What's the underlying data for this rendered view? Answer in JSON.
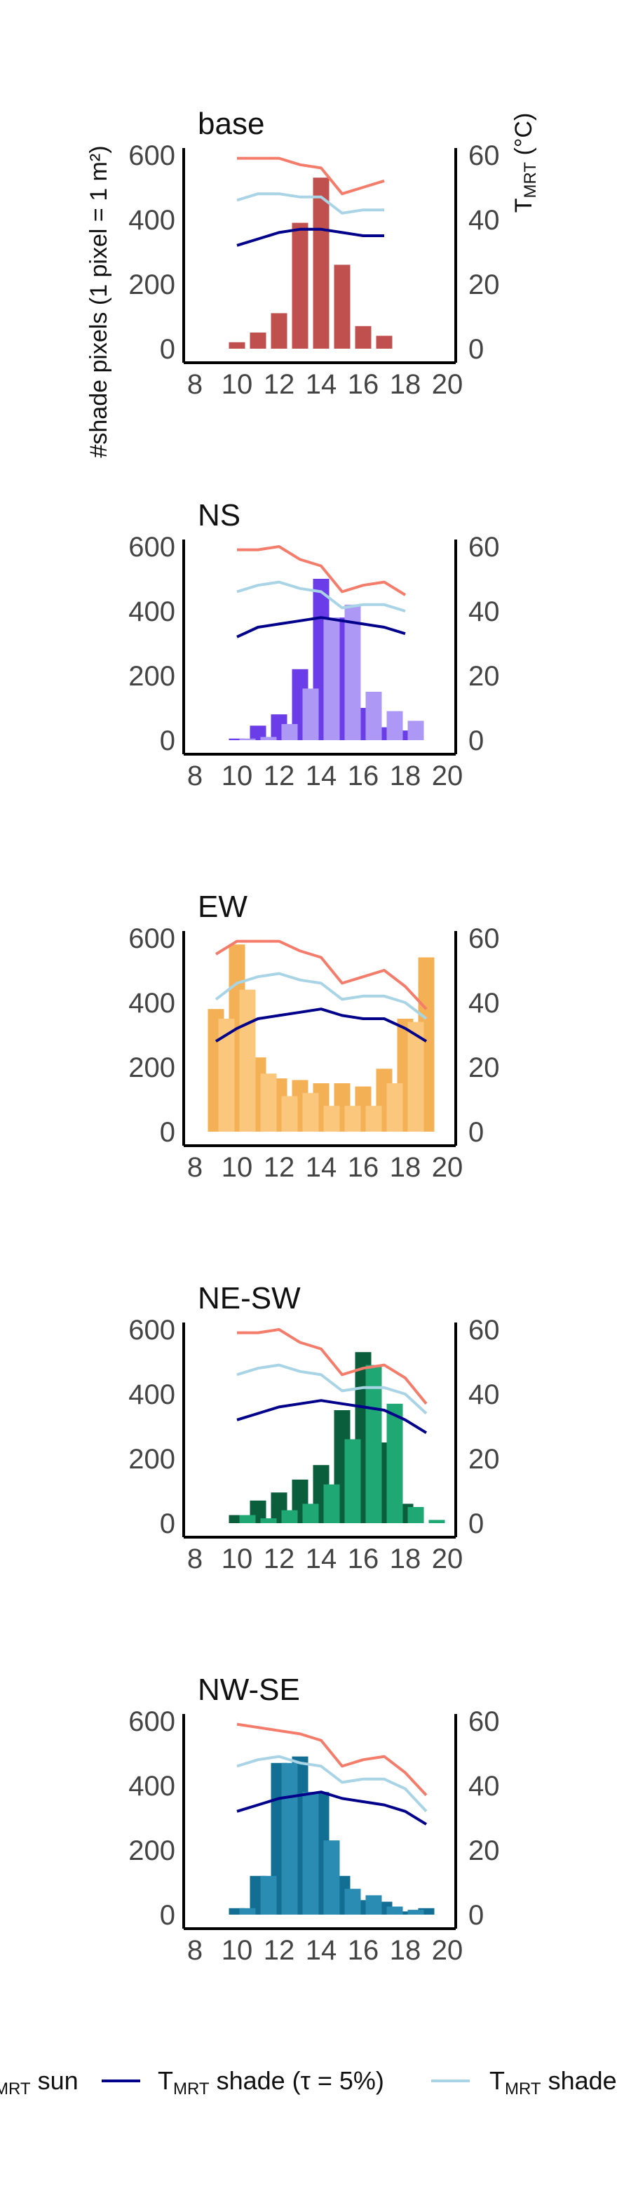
{
  "y_left_label": "#shade pixels (1 pixel = 1 m²)",
  "y_right_label": {
    "main": "T",
    "sub": "MRT",
    "rest": " (°C)"
  },
  "legend": [
    {
      "main": "T",
      "sub": "MRT",
      "rest": " sun",
      "color": "#F47C6B"
    },
    {
      "main": "T",
      "sub": "MRT",
      "rest": " shade (τ = 5%)",
      "color": "#00008B"
    },
    {
      "main": "T",
      "sub": "MRT",
      "rest": " shade",
      "color": "#A8D4E6"
    }
  ],
  "chart_data": [
    {
      "type": "bar",
      "title": "base",
      "xlim": [
        8,
        20
      ],
      "x_ticks": [
        8,
        10,
        12,
        14,
        16,
        18,
        20
      ],
      "ylim": [
        0,
        600
      ],
      "y_ticks": [
        0,
        200,
        400,
        600
      ],
      "y2lim": [
        0,
        60
      ],
      "y2_ticks": [
        0,
        20,
        40,
        60
      ],
      "bar_groups": [
        {
          "color": "#C0504D",
          "x": [
            10,
            11,
            12,
            13,
            14,
            15,
            16,
            17
          ],
          "values": [
            20,
            50,
            110,
            390,
            530,
            260,
            70,
            40
          ]
        }
      ],
      "lines": [
        {
          "name": "TMRT sun",
          "color": "#F47C6B",
          "x": [
            10,
            11,
            12,
            13,
            14,
            15,
            16,
            17
          ],
          "values": [
            59,
            59,
            59,
            57,
            56,
            48,
            50,
            52
          ]
        },
        {
          "name": "TMRT shade",
          "color": "#A8D4E6",
          "x": [
            10,
            11,
            12,
            13,
            14,
            15,
            16,
            17
          ],
          "values": [
            46,
            48,
            48,
            47,
            47,
            42,
            43,
            43
          ]
        },
        {
          "name": "TMRT shade (τ = 5%)",
          "color": "#00008B",
          "x": [
            10,
            11,
            12,
            13,
            14,
            15,
            16,
            17
          ],
          "values": [
            32,
            34,
            36,
            37,
            37,
            36,
            35,
            35
          ]
        }
      ]
    },
    {
      "type": "bar",
      "title": "NS",
      "xlim": [
        8,
        20
      ],
      "x_ticks": [
        8,
        10,
        12,
        14,
        16,
        18,
        20
      ],
      "ylim": [
        0,
        600
      ],
      "y_ticks": [
        0,
        200,
        400,
        600
      ],
      "y2lim": [
        0,
        60
      ],
      "y2_ticks": [
        0,
        20,
        40,
        60
      ],
      "bar_groups": [
        {
          "color": "#6A3DE8",
          "x": [
            10,
            11,
            12,
            13,
            14,
            15,
            16,
            17,
            18
          ],
          "values": [
            5,
            45,
            80,
            220,
            500,
            380,
            100,
            40,
            30
          ]
        },
        {
          "color": "#AD99F5",
          "x": [
            10.5,
            11.5,
            12.5,
            13.5,
            14.5,
            15.5,
            16.5,
            17.5,
            18.5
          ],
          "values": [
            5,
            10,
            50,
            160,
            380,
            420,
            150,
            90,
            60
          ]
        }
      ],
      "lines": [
        {
          "name": "TMRT sun",
          "color": "#F47C6B",
          "x": [
            10,
            11,
            12,
            13,
            14,
            15,
            16,
            17,
            18
          ],
          "values": [
            59,
            59,
            60,
            56,
            54,
            46,
            48,
            49,
            45
          ]
        },
        {
          "name": "TMRT shade",
          "color": "#A8D4E6",
          "x": [
            10,
            11,
            12,
            13,
            14,
            15,
            16,
            17,
            18
          ],
          "values": [
            46,
            48,
            49,
            47,
            46,
            41,
            42,
            42,
            40
          ]
        },
        {
          "name": "TMRT shade (τ = 5%)",
          "color": "#00008B",
          "x": [
            10,
            11,
            12,
            13,
            14,
            15,
            16,
            17,
            18
          ],
          "values": [
            32,
            35,
            36,
            37,
            38,
            37,
            36,
            35,
            33
          ]
        }
      ]
    },
    {
      "type": "bar",
      "title": "EW",
      "xlim": [
        8,
        20
      ],
      "x_ticks": [
        8,
        10,
        12,
        14,
        16,
        18,
        20
      ],
      "ylim": [
        0,
        600
      ],
      "y_ticks": [
        0,
        200,
        400,
        600
      ],
      "y2lim": [
        0,
        60
      ],
      "y2_ticks": [
        0,
        20,
        40,
        60
      ],
      "bar_groups": [
        {
          "color": "#F4B055",
          "x": [
            9,
            10,
            11,
            12,
            13,
            14,
            15,
            16,
            17,
            18,
            19
          ],
          "values": [
            380,
            580,
            230,
            165,
            160,
            150,
            150,
            140,
            195,
            350,
            540
          ]
        },
        {
          "color": "#FAC77C",
          "x": [
            9.5,
            10.5,
            11.5,
            12.5,
            13.5,
            14.5,
            15.5,
            16.5,
            17.5,
            18.5
          ],
          "values": [
            350,
            440,
            180,
            110,
            120,
            80,
            80,
            80,
            150,
            340
          ]
        }
      ],
      "lines": [
        {
          "name": "TMRT sun",
          "color": "#F47C6B",
          "x": [
            9,
            10,
            11,
            12,
            13,
            14,
            15,
            16,
            17,
            18,
            19
          ],
          "values": [
            55,
            59,
            59,
            59,
            56,
            54,
            46,
            48,
            50,
            45,
            38
          ]
        },
        {
          "name": "TMRT shade",
          "color": "#A8D4E6",
          "x": [
            9,
            10,
            11,
            12,
            13,
            14,
            15,
            16,
            17,
            18,
            19
          ],
          "values": [
            41,
            46,
            48,
            49,
            47,
            46,
            41,
            42,
            42,
            40,
            35
          ]
        },
        {
          "name": "TMRT shade (τ = 5%)",
          "color": "#00008B",
          "x": [
            9,
            10,
            11,
            12,
            13,
            14,
            15,
            16,
            17,
            18,
            19
          ],
          "values": [
            28,
            32,
            35,
            36,
            37,
            38,
            36,
            35,
            35,
            32,
            28
          ]
        }
      ]
    },
    {
      "type": "bar",
      "title": "NE-SW",
      "xlim": [
        8,
        20
      ],
      "x_ticks": [
        8,
        10,
        12,
        14,
        16,
        18,
        20
      ],
      "ylim": [
        0,
        600
      ],
      "y_ticks": [
        0,
        200,
        400,
        600
      ],
      "y2lim": [
        0,
        60
      ],
      "y2_ticks": [
        0,
        20,
        40,
        60
      ],
      "bar_groups": [
        {
          "color": "#0B5E3C",
          "x": [
            10,
            11,
            12,
            13,
            14,
            15,
            16,
            17,
            18
          ],
          "values": [
            25,
            70,
            95,
            135,
            180,
            350,
            530,
            250,
            60
          ]
        },
        {
          "color": "#1FA774",
          "x": [
            10.5,
            11.5,
            12.5,
            13.5,
            14.5,
            15.5,
            16.5,
            17.5,
            18.5,
            19.5
          ],
          "values": [
            25,
            15,
            40,
            60,
            120,
            260,
            490,
            370,
            50,
            10
          ]
        }
      ],
      "lines": [
        {
          "name": "TMRT sun",
          "color": "#F47C6B",
          "x": [
            10,
            11,
            12,
            13,
            14,
            15,
            16,
            17,
            18,
            19
          ],
          "values": [
            59,
            59,
            60,
            56,
            54,
            46,
            48,
            49,
            45,
            37
          ]
        },
        {
          "name": "TMRT shade",
          "color": "#A8D4E6",
          "x": [
            10,
            11,
            12,
            13,
            14,
            15,
            16,
            17,
            18,
            19
          ],
          "values": [
            46,
            48,
            49,
            47,
            46,
            41,
            42,
            42,
            40,
            34
          ]
        },
        {
          "name": "TMRT shade (τ = 5%)",
          "color": "#00008B",
          "x": [
            10,
            11,
            12,
            13,
            14,
            15,
            16,
            17,
            18,
            19
          ],
          "values": [
            32,
            34,
            36,
            37,
            38,
            37,
            36,
            35,
            32,
            28
          ]
        }
      ]
    },
    {
      "type": "bar",
      "title": "NW-SE",
      "xlim": [
        8,
        20
      ],
      "x_ticks": [
        8,
        10,
        12,
        14,
        16,
        18,
        20
      ],
      "ylim": [
        0,
        600
      ],
      "y_ticks": [
        0,
        200,
        400,
        600
      ],
      "y2lim": [
        0,
        60
      ],
      "y2_ticks": [
        0,
        20,
        40,
        60
      ],
      "bar_groups": [
        {
          "color": "#136E93",
          "x": [
            10,
            11,
            12,
            13,
            14,
            15,
            16,
            17,
            18,
            19
          ],
          "values": [
            20,
            120,
            470,
            490,
            380,
            120,
            45,
            40,
            10,
            20
          ]
        },
        {
          "color": "#2A8BB3",
          "x": [
            10.5,
            11.5,
            12.5,
            13.5,
            14.5,
            15.5,
            16.5,
            17.5,
            18.5
          ],
          "values": [
            20,
            120,
            470,
            380,
            230,
            80,
            60,
            25,
            15
          ]
        }
      ],
      "lines": [
        {
          "name": "TMRT sun",
          "color": "#F47C6B",
          "x": [
            10,
            11,
            12,
            13,
            14,
            15,
            16,
            17,
            18,
            19
          ],
          "values": [
            59,
            58,
            57,
            56,
            54,
            46,
            48,
            49,
            44,
            37
          ]
        },
        {
          "name": "TMRT shade",
          "color": "#A8D4E6",
          "x": [
            10,
            11,
            12,
            13,
            14,
            15,
            16,
            17,
            18,
            19
          ],
          "values": [
            46,
            48,
            49,
            47,
            46,
            41,
            42,
            42,
            39,
            32
          ]
        },
        {
          "name": "TMRT shade (τ = 5%)",
          "color": "#00008B",
          "x": [
            10,
            11,
            12,
            13,
            14,
            15,
            16,
            17,
            18,
            19
          ],
          "values": [
            32,
            34,
            36,
            37,
            38,
            36,
            35,
            34,
            32,
            28
          ]
        }
      ]
    }
  ]
}
